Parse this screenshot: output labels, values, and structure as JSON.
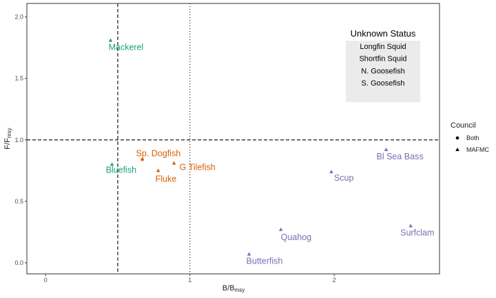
{
  "chart_data": {
    "type": "scatter",
    "xlabel": "B/B",
    "xlabel_sub": "msy",
    "ylabel": "F/F",
    "ylabel_sub": "msy",
    "xlim": [
      -0.13,
      2.73
    ],
    "ylim": [
      -0.09,
      2.11
    ],
    "x_ticks": [
      0,
      1,
      2
    ],
    "y_ticks": [
      0.0,
      0.5,
      1.0,
      1.5,
      2.0
    ],
    "x_tick_labels": [
      "0",
      "1",
      "2"
    ],
    "y_tick_labels": [
      "0.0",
      "0.5",
      "1.0",
      "1.5",
      "2.0"
    ],
    "reference_lines": [
      {
        "axis": "x",
        "value": 0.5,
        "style": "dashed"
      },
      {
        "axis": "x",
        "value": 1.0,
        "style": "dotted"
      },
      {
        "axis": "y",
        "value": 1.0,
        "style": "dashed"
      }
    ],
    "grid": false,
    "colors": {
      "green": "#1b9e77",
      "orange": "#d95f02",
      "purple": "#7570b3"
    },
    "points": [
      {
        "name": "Mackerel",
        "x": 0.45,
        "y": 1.81,
        "shape": "triangle",
        "color": "green"
      },
      {
        "name": "Bluefish",
        "x": 0.46,
        "y": 0.8,
        "shape": "triangle",
        "color": "green"
      },
      {
        "name": "Sp. Dogfish",
        "x": 0.67,
        "y": 0.84,
        "shape": "circle",
        "color": "orange"
      },
      {
        "name": "Fluke",
        "x": 0.78,
        "y": 0.75,
        "shape": "triangle",
        "color": "orange"
      },
      {
        "name": "G Tilefish",
        "x": 0.89,
        "y": 0.81,
        "shape": "triangle",
        "color": "orange"
      },
      {
        "name": "Bl Sea Bass",
        "x": 2.36,
        "y": 0.92,
        "shape": "triangle",
        "color": "purple"
      },
      {
        "name": "Scup",
        "x": 1.98,
        "y": 0.74,
        "shape": "triangle",
        "color": "purple"
      },
      {
        "name": "Quahog",
        "x": 1.63,
        "y": 0.27,
        "shape": "triangle",
        "color": "purple"
      },
      {
        "name": "Surfclam",
        "x": 2.53,
        "y": 0.3,
        "shape": "triangle",
        "color": "purple"
      },
      {
        "name": "Butterfish",
        "x": 1.41,
        "y": 0.07,
        "shape": "triangle",
        "color": "purple"
      }
    ],
    "legend": {
      "title": "Council",
      "placement": "right",
      "entries": [
        {
          "label": "Both",
          "shape": "circle"
        },
        {
          "label": "MAFMC",
          "shape": "triangle"
        }
      ]
    },
    "unknown_status": {
      "title": "Unknown Status",
      "items": [
        "Longfin Squid",
        "Shortfin Squid",
        "N. Goosefish",
        "S. Goosefish"
      ]
    }
  }
}
